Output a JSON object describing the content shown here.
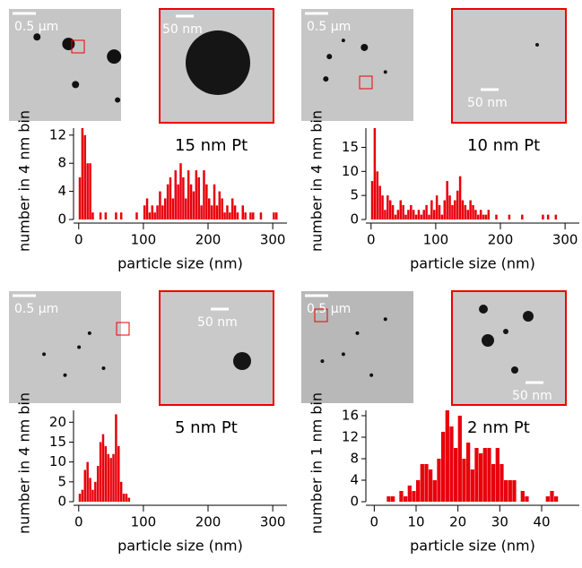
{
  "chart_data": [
    {
      "type": "histogram",
      "annotation": "15 nm Pt",
      "scale_labels": [
        "0.5 µm",
        "50 nm"
      ],
      "xlabel": "particle size (nm)",
      "ylabel": "number in 4 nm bin",
      "color": "#e8000b",
      "bins": [
        0,
        4,
        8,
        12,
        16,
        20,
        24,
        28,
        32,
        36,
        40,
        44,
        48,
        52,
        56,
        60,
        64,
        68,
        72,
        76,
        80,
        84,
        88,
        92,
        96,
        100,
        104,
        108,
        112,
        116,
        120,
        124,
        128,
        132,
        136,
        140,
        144,
        148,
        152,
        156,
        160,
        164,
        168,
        172,
        176,
        180,
        184,
        188,
        192,
        196,
        200,
        204,
        208,
        212,
        216,
        220,
        224,
        228,
        232,
        236,
        240,
        244,
        248,
        252,
        256,
        260,
        264,
        268,
        272,
        276,
        280,
        284,
        288,
        292,
        296,
        300,
        304,
        308,
        312,
        316,
        320
      ],
      "counts": [
        6,
        13,
        12,
        8,
        8,
        1,
        0,
        0,
        1,
        0,
        1,
        0,
        0,
        0,
        1,
        0,
        1,
        0,
        0,
        0,
        0,
        0,
        1,
        0,
        0,
        2,
        3,
        1,
        2,
        1,
        2,
        4,
        2,
        3,
        5,
        6,
        3,
        7,
        5,
        8,
        6,
        3,
        7,
        5,
        4,
        7,
        6,
        2,
        7,
        5,
        3,
        2,
        5,
        2,
        4,
        3,
        1,
        2,
        1,
        3,
        2,
        1,
        0,
        2,
        1,
        0,
        1,
        1,
        0,
        0,
        1,
        0,
        0,
        0,
        0,
        1,
        1,
        0,
        0,
        0
      ],
      "xlim": [
        -8,
        322
      ],
      "xticks": [
        0,
        100,
        200,
        300
      ],
      "ylim": [
        0,
        13
      ],
      "yticks": [
        0,
        4,
        8,
        12
      ]
    },
    {
      "type": "histogram",
      "annotation": "10 nm Pt",
      "scale_labels": [
        "0.5 µm",
        "50 nm"
      ],
      "xlabel": "particle size (nm)",
      "ylabel": "number in 4 nm bin",
      "color": "#e8000b",
      "bins": [
        0,
        4,
        8,
        12,
        16,
        20,
        24,
        28,
        32,
        36,
        40,
        44,
        48,
        52,
        56,
        60,
        64,
        68,
        72,
        76,
        80,
        84,
        88,
        92,
        96,
        100,
        104,
        108,
        112,
        116,
        120,
        124,
        128,
        132,
        136,
        140,
        144,
        148,
        152,
        156,
        160,
        164,
        168,
        172,
        176,
        180,
        184,
        188,
        192,
        196,
        200,
        204,
        208,
        212,
        216,
        220,
        224,
        228,
        232,
        236,
        240,
        244,
        248,
        252,
        256,
        260,
        264,
        268,
        272,
        276,
        280,
        284,
        288,
        292,
        296,
        300,
        304,
        308,
        312,
        316,
        320
      ],
      "counts": [
        8,
        19,
        10,
        7,
        5,
        2,
        5,
        4,
        3,
        1,
        2,
        4,
        3,
        1,
        2,
        3,
        2,
        1,
        2,
        1,
        2,
        3,
        1,
        4,
        2,
        5,
        3,
        1,
        4,
        8,
        5,
        3,
        4,
        6,
        9,
        4,
        3,
        2,
        4,
        3,
        2,
        1,
        2,
        1,
        1,
        2,
        0,
        0,
        1,
        0,
        0,
        0,
        0,
        1,
        0,
        0,
        0,
        0,
        1,
        0,
        0,
        0,
        0,
        0,
        0,
        0,
        1,
        0,
        1,
        0,
        0,
        1,
        0,
        0,
        0,
        0,
        0,
        0,
        0,
        0
      ],
      "xlim": [
        -8,
        322
      ],
      "xticks": [
        0,
        100,
        200,
        300
      ],
      "ylim": [
        0,
        19
      ],
      "yticks": [
        0,
        5,
        10,
        15
      ]
    },
    {
      "type": "histogram",
      "annotation": "5 nm Pt",
      "scale_labels": [
        "0.5 µm",
        "50 nm"
      ],
      "xlabel": "particle size (nm)",
      "ylabel": "number in 4 nm bin",
      "color": "#e8000b",
      "bins": [
        0,
        4,
        8,
        12,
        16,
        20,
        24,
        28,
        32,
        36,
        40,
        44,
        48,
        52,
        56,
        60,
        64,
        68,
        72,
        76,
        80,
        84,
        88,
        92,
        96,
        100,
        104,
        108,
        112,
        116,
        120,
        124,
        128,
        132,
        136,
        140,
        144,
        148,
        152,
        156,
        160,
        164,
        168,
        172,
        176,
        180,
        184,
        188,
        192,
        196,
        200,
        204,
        208,
        212,
        216,
        220,
        224,
        228,
        232,
        236,
        240,
        244,
        248,
        252,
        256,
        260,
        264,
        268,
        272,
        276,
        280,
        284,
        288,
        292,
        296,
        300,
        304,
        308,
        312,
        316,
        320
      ],
      "counts": [
        2,
        3,
        8,
        10,
        6,
        3,
        5,
        9,
        15,
        17,
        14,
        12,
        11,
        12,
        22,
        14,
        5,
        2,
        2,
        1,
        0,
        0,
        0,
        0,
        0,
        0,
        0,
        0,
        0,
        0,
        0,
        0,
        0,
        0,
        0,
        0,
        0,
        0,
        0,
        0,
        0,
        0,
        0,
        0,
        0,
        0,
        0,
        0,
        0,
        0,
        0,
        0,
        0,
        0,
        0,
        0,
        0,
        0,
        0,
        0,
        0,
        0,
        0,
        0,
        0,
        0,
        0,
        0,
        0,
        0,
        0,
        0,
        0,
        0,
        0,
        0,
        0,
        0,
        0,
        0
      ],
      "xlim": [
        -8,
        322
      ],
      "xticks": [
        0,
        100,
        200,
        300
      ],
      "ylim": [
        0,
        23
      ],
      "yticks": [
        0,
        5,
        10,
        15,
        20
      ]
    },
    {
      "type": "histogram",
      "annotation": "2 nm Pt",
      "scale_labels": [
        "0.5 µm",
        "50 nm"
      ],
      "xlabel": "particle size (nm)",
      "ylabel": "number in 1 nm bin",
      "color": "#e8000b",
      "bins": [
        0,
        1,
        2,
        3,
        4,
        5,
        6,
        7,
        8,
        9,
        10,
        11,
        12,
        13,
        14,
        15,
        16,
        17,
        18,
        19,
        20,
        21,
        22,
        23,
        24,
        25,
        26,
        27,
        28,
        29,
        30,
        31,
        32,
        33,
        34,
        35,
        36,
        37,
        38,
        39,
        40,
        41,
        42,
        43,
        44,
        45,
        46,
        47,
        48,
        49
      ],
      "counts": [
        0,
        0,
        0,
        1,
        1,
        0,
        2,
        1,
        3,
        2,
        4,
        7,
        7,
        6,
        4,
        8,
        13,
        17,
        14,
        10,
        16,
        8,
        11,
        6,
        10,
        9,
        10,
        10,
        7,
        10,
        7,
        4,
        4,
        4,
        0,
        2,
        1,
        0,
        0,
        0,
        0,
        1,
        2,
        1,
        0,
        0,
        0,
        0,
        0
      ],
      "xlim": [
        -2,
        49
      ],
      "xticks": [
        0,
        10,
        20,
        30,
        40
      ],
      "ylim": [
        0,
        17
      ],
      "yticks": [
        0,
        4,
        8,
        12,
        16
      ]
    }
  ]
}
